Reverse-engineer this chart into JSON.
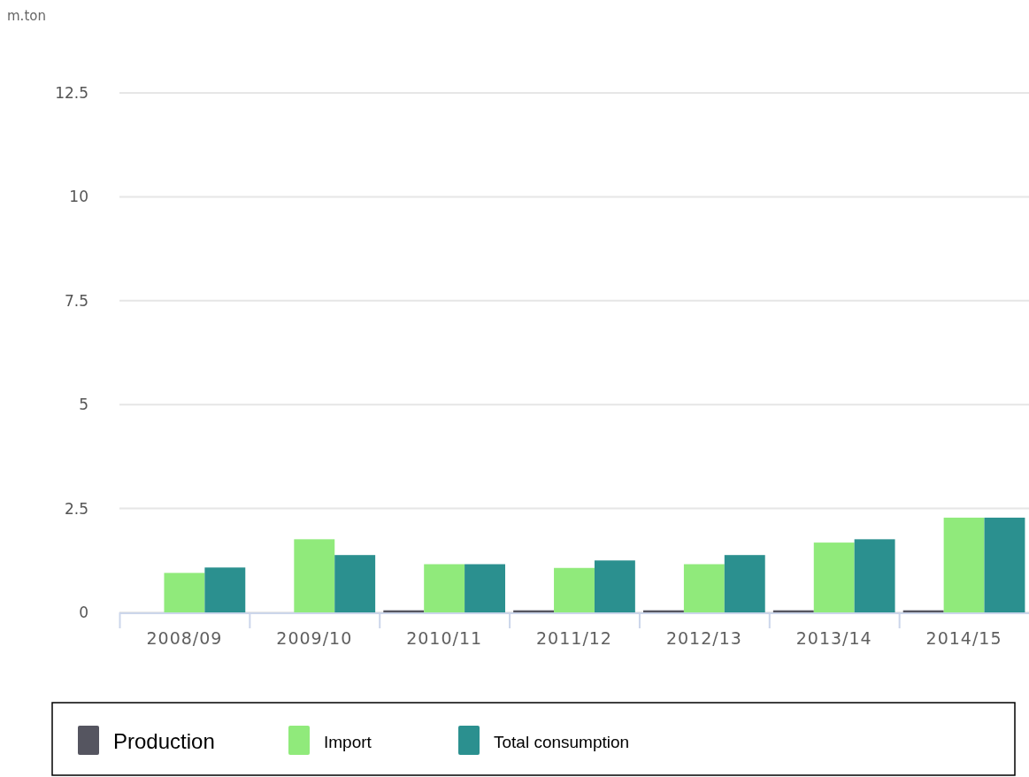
{
  "chart_data": {
    "type": "bar",
    "ylabel": "m.ton",
    "categories": [
      "2008/09",
      "2009/10",
      "2010/11",
      "2011/12",
      "2012/13",
      "2013/14",
      "2014/15"
    ],
    "series": [
      {
        "name": "Production",
        "color": "#555560",
        "values": [
          null,
          null,
          0.05,
          0.05,
          0.05,
          0.05,
          0.05
        ]
      },
      {
        "name": "Import",
        "color": "#90ea7b",
        "values": [
          0.95,
          1.76,
          1.16,
          1.07,
          1.16,
          1.68,
          2.28
        ]
      },
      {
        "name": "Total consumption",
        "color": "#2b908f",
        "values": [
          1.08,
          1.38,
          1.16,
          1.25,
          1.38,
          1.76,
          2.28
        ]
      }
    ],
    "ylim": [
      0,
      12.5
    ],
    "yticks": [
      0,
      2.5,
      5,
      7.5,
      10,
      12.5
    ],
    "grid": "y",
    "legend": "bottom"
  }
}
